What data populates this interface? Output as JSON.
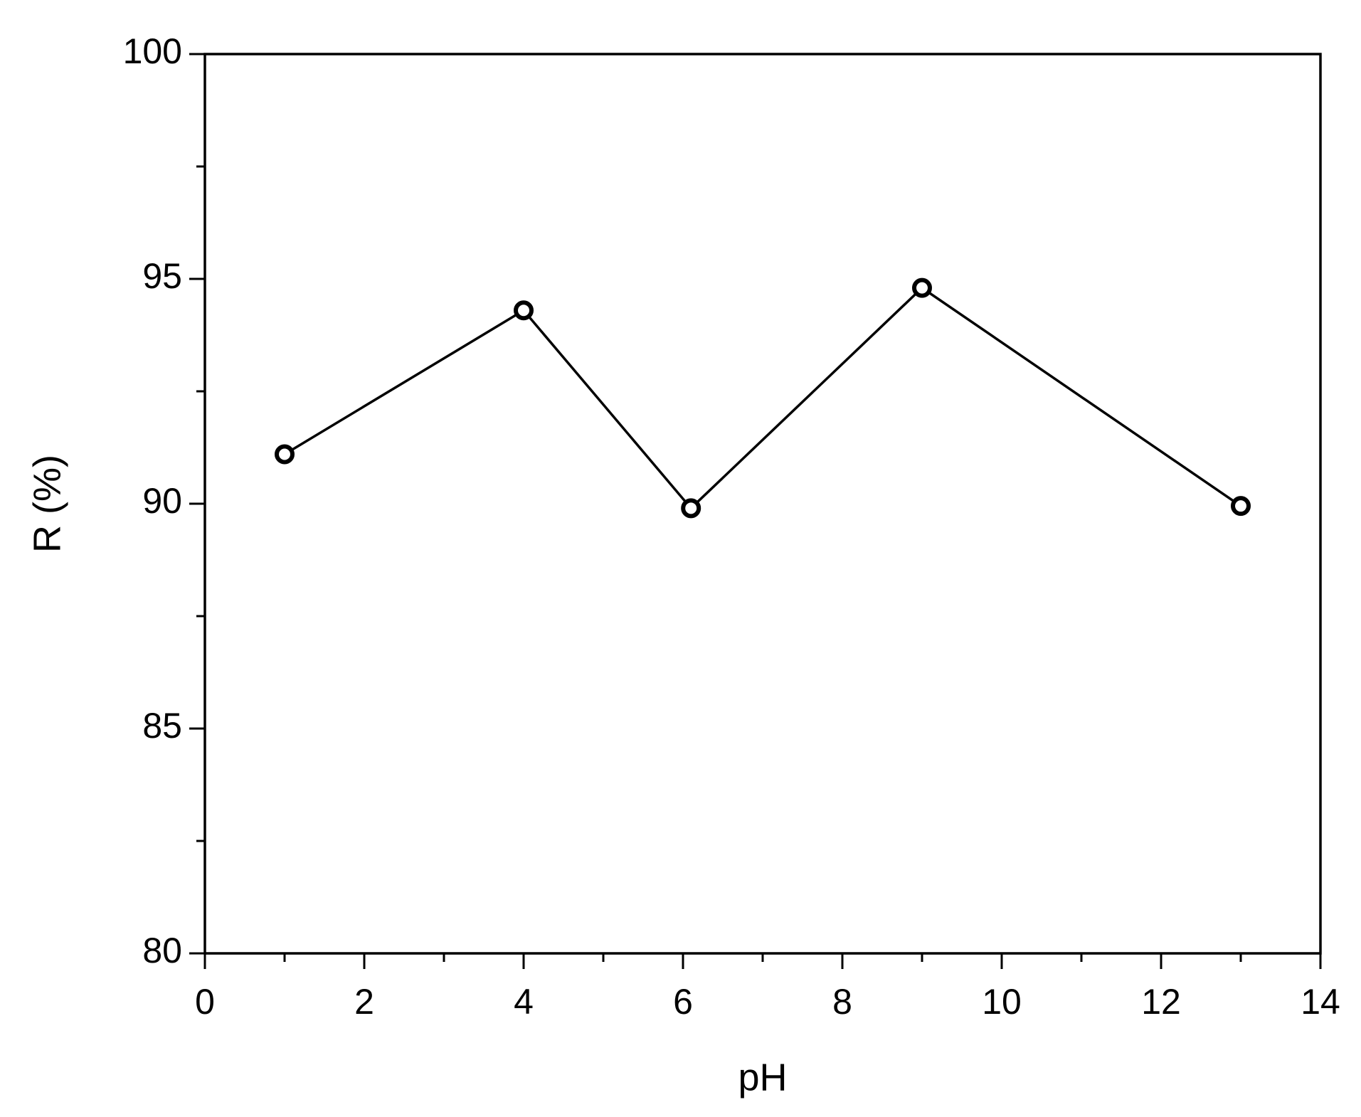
{
  "chart_data": {
    "type": "line",
    "x_label": "pH",
    "y_label": "R (%)",
    "x": [
      1,
      4,
      6.1,
      9,
      13
    ],
    "series": [
      {
        "color": "#000000",
        "values": [
          91.1,
          94.3,
          89.9,
          94.8,
          89.95
        ]
      }
    ],
    "xlim": [
      0,
      14
    ],
    "xticks": [
      0,
      2,
      4,
      6,
      8,
      10,
      12,
      14
    ],
    "ylim": [
      80,
      100
    ],
    "yticks": [
      80,
      85,
      90,
      95,
      100
    ],
    "grid": false
  }
}
